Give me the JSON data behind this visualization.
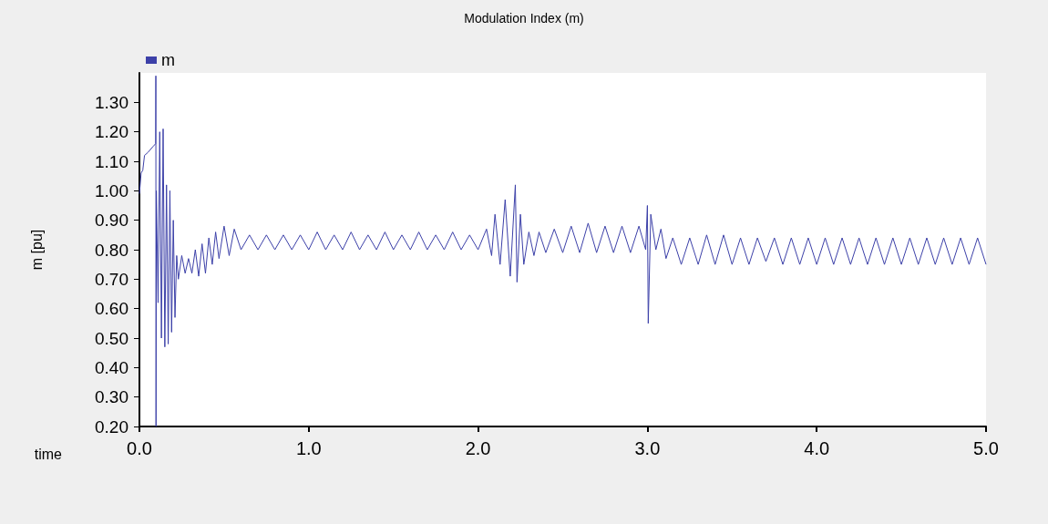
{
  "chart_data": {
    "type": "line",
    "title": "Modulation Index (m)",
    "xlabel": "time",
    "ylabel": "m [pu]",
    "xlim": [
      0,
      5
    ],
    "xticks": [
      {
        "value": 0,
        "label": "0.0"
      },
      {
        "value": 1,
        "label": "1.0"
      },
      {
        "value": 2,
        "label": "2.0"
      },
      {
        "value": 3,
        "label": "3.0"
      },
      {
        "value": 4,
        "label": "4.0"
      },
      {
        "value": 5,
        "label": "5.0"
      }
    ],
    "ylim": [
      0.2,
      1.4
    ],
    "yticks": [
      {
        "value": 0.2,
        "label": "0.20"
      },
      {
        "value": 0.3,
        "label": "0.30"
      },
      {
        "value": 0.4,
        "label": "0.40"
      },
      {
        "value": 0.5,
        "label": "0.50"
      },
      {
        "value": 0.6,
        "label": "0.60"
      },
      {
        "value": 0.7,
        "label": "0.70"
      },
      {
        "value": 0.8,
        "label": "0.80"
      },
      {
        "value": 0.9,
        "label": "0.90"
      },
      {
        "value": 1.0,
        "label": "1.00"
      },
      {
        "value": 1.1,
        "label": "1.10"
      },
      {
        "value": 1.2,
        "label": "1.20"
      },
      {
        "value": 1.3,
        "label": "1.30"
      }
    ],
    "grid": false,
    "legend": "top left",
    "marker": "none",
    "line_style": "solid",
    "series": [
      {
        "name": "m",
        "color": "#3c40a8",
        "x": [
          0,
          0.01,
          0.02,
          0.03,
          0.05,
          0.08,
          0.096,
          0.097,
          0.098,
          0.1,
          0.11,
          0.12,
          0.13,
          0.14,
          0.15,
          0.16,
          0.17,
          0.18,
          0.19,
          0.2,
          0.21,
          0.22,
          0.23,
          0.25,
          0.27,
          0.29,
          0.31,
          0.33,
          0.35,
          0.37,
          0.39,
          0.41,
          0.43,
          0.45,
          0.47,
          0.5,
          0.53,
          0.56,
          0.6,
          0.65,
          0.7,
          0.75,
          0.8,
          0.85,
          0.9,
          0.95,
          1.0,
          1.05,
          1.1,
          1.15,
          1.2,
          1.25,
          1.3,
          1.35,
          1.4,
          1.45,
          1.5,
          1.55,
          1.6,
          1.65,
          1.7,
          1.75,
          1.8,
          1.85,
          1.9,
          1.95,
          2.0,
          2.05,
          2.08,
          2.1,
          2.13,
          2.16,
          2.19,
          2.22,
          2.23,
          2.25,
          2.27,
          2.3,
          2.33,
          2.36,
          2.4,
          2.45,
          2.5,
          2.55,
          2.6,
          2.65,
          2.7,
          2.75,
          2.8,
          2.85,
          2.9,
          2.95,
          2.99,
          3.0,
          3.005,
          3.02,
          3.05,
          3.08,
          3.11,
          3.15,
          3.2,
          3.25,
          3.3,
          3.35,
          3.4,
          3.45,
          3.5,
          3.55,
          3.6,
          3.65,
          3.7,
          3.75,
          3.8,
          3.85,
          3.9,
          3.95,
          4.0,
          4.05,
          4.1,
          4.15,
          4.2,
          4.25,
          4.3,
          4.35,
          4.4,
          4.45,
          4.5,
          4.55,
          4.6,
          4.65,
          4.7,
          4.75,
          4.8,
          4.85,
          4.9,
          4.95,
          5.0
        ],
        "values": [
          0.99,
          1.06,
          1.07,
          1.12,
          1.13,
          1.15,
          1.16,
          1.39,
          0.2,
          1.0,
          0.62,
          1.2,
          0.5,
          1.21,
          0.47,
          1.02,
          0.48,
          1.0,
          0.52,
          0.9,
          0.57,
          0.78,
          0.7,
          0.78,
          0.72,
          0.77,
          0.72,
          0.8,
          0.71,
          0.82,
          0.72,
          0.84,
          0.75,
          0.86,
          0.77,
          0.88,
          0.78,
          0.87,
          0.8,
          0.85,
          0.8,
          0.85,
          0.8,
          0.85,
          0.8,
          0.85,
          0.8,
          0.86,
          0.8,
          0.85,
          0.8,
          0.86,
          0.8,
          0.85,
          0.8,
          0.86,
          0.8,
          0.85,
          0.8,
          0.86,
          0.8,
          0.85,
          0.8,
          0.86,
          0.8,
          0.85,
          0.8,
          0.87,
          0.78,
          0.92,
          0.75,
          0.97,
          0.71,
          1.02,
          0.69,
          0.92,
          0.75,
          0.86,
          0.78,
          0.86,
          0.79,
          0.87,
          0.79,
          0.88,
          0.79,
          0.89,
          0.79,
          0.88,
          0.79,
          0.88,
          0.79,
          0.88,
          0.8,
          0.95,
          0.55,
          0.92,
          0.8,
          0.87,
          0.77,
          0.84,
          0.75,
          0.84,
          0.75,
          0.85,
          0.75,
          0.85,
          0.75,
          0.84,
          0.75,
          0.84,
          0.76,
          0.84,
          0.75,
          0.84,
          0.75,
          0.84,
          0.75,
          0.84,
          0.75,
          0.84,
          0.75,
          0.84,
          0.75,
          0.84,
          0.75,
          0.84,
          0.75,
          0.84,
          0.75,
          0.84,
          0.75,
          0.84,
          0.75,
          0.84,
          0.75,
          0.84,
          0.75
        ]
      }
    ]
  }
}
